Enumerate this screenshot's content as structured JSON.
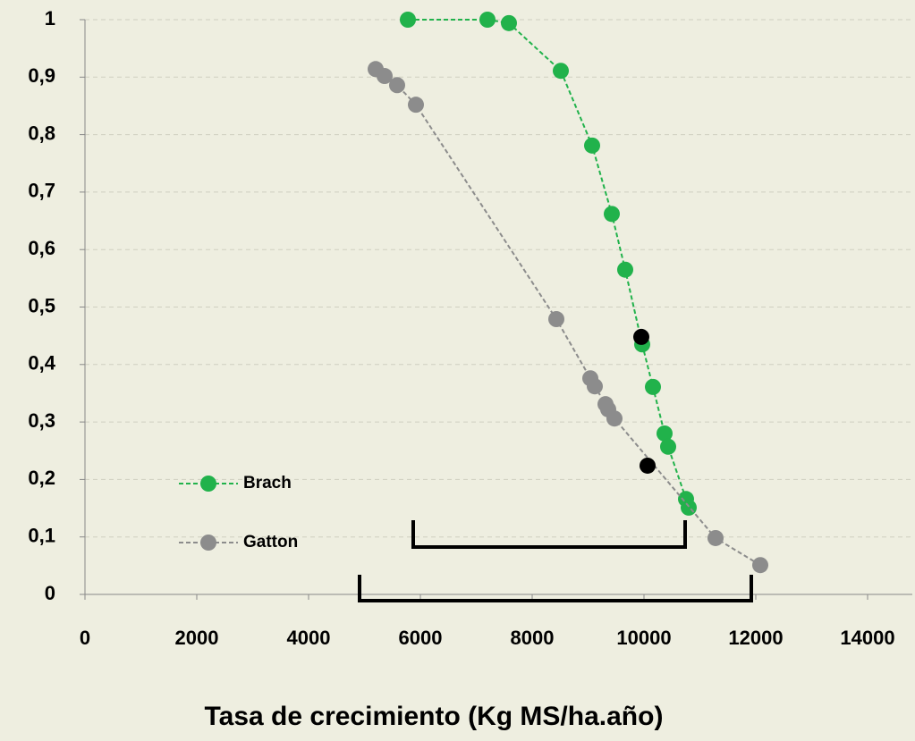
{
  "chart_data": {
    "type": "line",
    "x_label": "Tasa de crecimiento (Kg MS/ha.año)",
    "xlim": [
      0,
      14800
    ],
    "xticks": [
      0,
      2000,
      4000,
      6000,
      8000,
      10000,
      12000,
      14000
    ],
    "ylim": [
      0,
      1
    ],
    "yticks": [
      0,
      {
        "value": 0.1,
        "label": "0,1"
      },
      {
        "value": 0.2,
        "label": "0,2"
      },
      {
        "value": 0.3,
        "label": "0,3"
      },
      {
        "value": 0.4,
        "label": "0,4"
      },
      {
        "value": 0.5,
        "label": "0,5"
      },
      {
        "value": 0.6,
        "label": "0,6"
      },
      {
        "value": 0.7,
        "label": "0,7"
      },
      {
        "value": 0.8,
        "label": "0,8"
      },
      {
        "value": 0.9,
        "label": "0,9"
      },
      1
    ],
    "grid": true,
    "series": [
      {
        "name": "Brach",
        "color": "#21b24b",
        "x": [
          5776,
          7200,
          7584,
          8512,
          9072,
          9424,
          9664,
          9968,
          10160,
          10368,
          10432,
          10752,
          10800
        ],
        "values": [
          1.0,
          1.0,
          0.994,
          0.911,
          0.781,
          0.662,
          0.565,
          0.435,
          0.361,
          0.28,
          0.257,
          0.166,
          0.151
        ]
      },
      {
        "name": "Gatton",
        "color": "#8c8c8c",
        "x": [
          5200,
          5360,
          5584,
          5920,
          8432,
          9040,
          9120,
          9312,
          9360,
          9472,
          11280,
          12080
        ],
        "values": [
          0.914,
          0.902,
          0.886,
          0.852,
          0.479,
          0.376,
          0.362,
          0.331,
          0.322,
          0.306,
          0.098,
          0.051
        ]
      }
    ],
    "points": {
      "color": "#000000",
      "x": [
        9952,
        10064
      ],
      "values": [
        0.448,
        0.224
      ]
    },
    "brackets": [
      [
        5872,
        10736
      ],
      [
        4912,
        11920
      ]
    ]
  }
}
